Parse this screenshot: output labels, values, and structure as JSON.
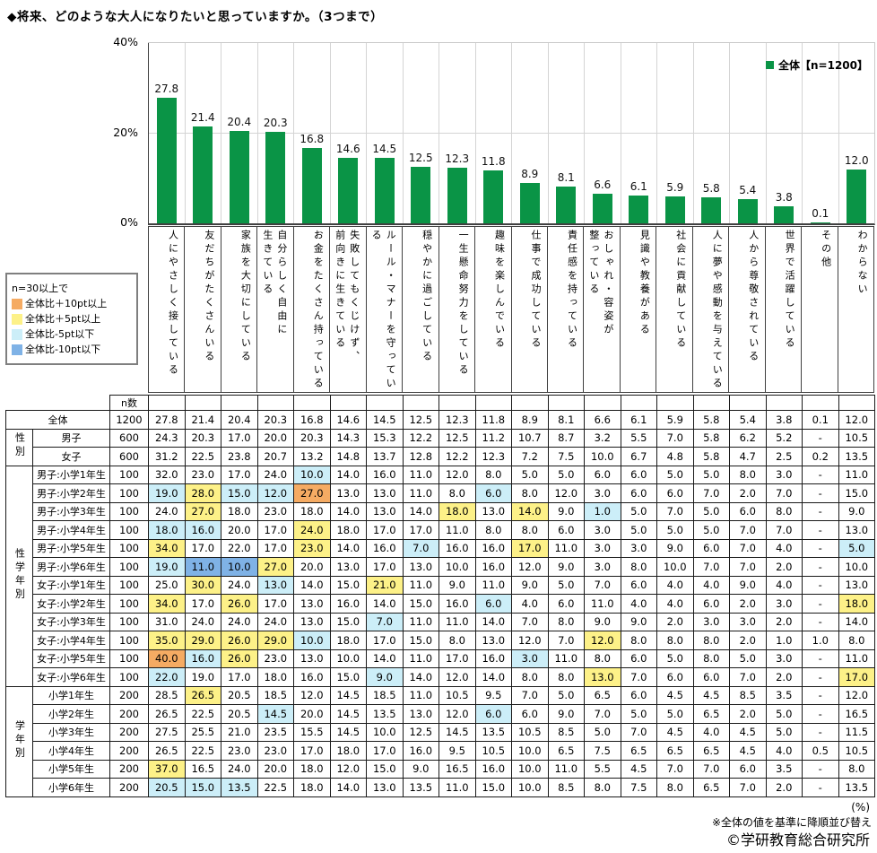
{
  "title": "◆将来、どのような大人になりたいと思っていますか。（3つまで）",
  "chart_data": {
    "type": "bar",
    "title": "将来、どのような大人になりたいと思っていますか。（3つまで）",
    "categories": [
      "人にやさしく接している",
      "友だちがたくさんいる",
      "家族を大切にしている",
      "自分らしく自由に\n生きている",
      "お金をたくさん持っている",
      "失敗してもくじけず、\n前向きに生きている",
      "ルール・マナーを守っている",
      "穏やかに過ごしている",
      "一生懸命努力をしている",
      "趣味を楽しんでいる",
      "仕事で成功している",
      "責任感を持っている",
      "おしゃれ・容姿が\n整っている",
      "見識や教養がある",
      "社会に貢献している",
      "人に夢や感動を与えている",
      "人から尊敬されている",
      "世界で活躍している",
      "その他",
      "わからない"
    ],
    "values": [
      27.8,
      21.4,
      20.4,
      20.3,
      16.8,
      14.6,
      14.5,
      12.5,
      12.3,
      11.8,
      8.9,
      8.1,
      6.6,
      6.1,
      5.9,
      5.8,
      5.4,
      3.8,
      0.1,
      12.0
    ],
    "xlabel": "",
    "ylabel": "",
    "ylim": [
      0,
      40
    ],
    "yticks": [
      "40%",
      "20%",
      "0%"
    ],
    "grid": true,
    "legend": "全体【n=1200】",
    "legend_position": "top-right",
    "bar_color": "#0a9446"
  },
  "threshold_legend": {
    "intro": "n=30以上で",
    "items": [
      {
        "key": "orange",
        "label": "全体比＋10pt以上",
        "color": "#f5ab63"
      },
      {
        "key": "yellow",
        "label": "全体比＋5pt以上",
        "color": "#fdf188"
      },
      {
        "key": "cyan",
        "label": "全体比-5pt以下",
        "color": "#cceef8"
      },
      {
        "key": "blue",
        "label": "全体比-10pt以下",
        "color": "#7fb2e6"
      }
    ]
  },
  "table": {
    "n_header": "n数",
    "overall_row": {
      "label": "全体",
      "n": "1200",
      "values": [
        "27.8",
        "21.4",
        "20.4",
        "20.3",
        "16.8",
        "14.6",
        "14.5",
        "12.5",
        "12.3",
        "11.8",
        "8.9",
        "8.1",
        "6.6",
        "6.1",
        "5.9",
        "5.8",
        "5.4",
        "3.8",
        "0.1",
        "12.0"
      ]
    },
    "groups": [
      {
        "name": "性別",
        "rows": [
          {
            "label": "男子",
            "n": "600",
            "values": [
              "24.3",
              "20.3",
              "17.0",
              "20.0",
              "20.3",
              "14.3",
              "15.3",
              "12.2",
              "12.5",
              "11.2",
              "10.7",
              "8.7",
              "3.2",
              "5.5",
              "7.0",
              "5.8",
              "6.2",
              "5.2",
              "-",
              "10.5"
            ]
          },
          {
            "label": "女子",
            "n": "600",
            "values": [
              "31.2",
              "22.5",
              "23.8",
              "20.7",
              "13.2",
              "14.8",
              "13.7",
              "12.8",
              "12.2",
              "12.3",
              "7.2",
              "7.5",
              "10.0",
              "6.7",
              "4.8",
              "5.8",
              "4.7",
              "2.5",
              "0.2",
              "13.5"
            ]
          }
        ]
      },
      {
        "name": "性学年別",
        "rows": [
          {
            "label": "男子:小学1年生",
            "n": "100",
            "values": [
              "32.0",
              "23.0",
              "17.0",
              "24.0",
              "10.0",
              "14.0",
              "16.0",
              "11.0",
              "12.0",
              "8.0",
              "5.0",
              "5.0",
              "6.0",
              "6.0",
              "5.0",
              "5.0",
              "8.0",
              "3.0",
              "-",
              "11.0"
            ]
          },
          {
            "label": "男子:小学2年生",
            "n": "100",
            "values": [
              "19.0",
              "28.0",
              "15.0",
              "12.0",
              "27.0",
              "13.0",
              "13.0",
              "11.0",
              "8.0",
              "6.0",
              "8.0",
              "12.0",
              "3.0",
              "6.0",
              "6.0",
              "7.0",
              "2.0",
              "7.0",
              "-",
              "15.0"
            ]
          },
          {
            "label": "男子:小学3年生",
            "n": "100",
            "values": [
              "24.0",
              "27.0",
              "18.0",
              "23.0",
              "18.0",
              "14.0",
              "13.0",
              "14.0",
              "18.0",
              "13.0",
              "14.0",
              "9.0",
              "1.0",
              "5.0",
              "7.0",
              "5.0",
              "6.0",
              "8.0",
              "-",
              "9.0"
            ]
          },
          {
            "label": "男子:小学4年生",
            "n": "100",
            "values": [
              "18.0",
              "16.0",
              "20.0",
              "17.0",
              "24.0",
              "18.0",
              "17.0",
              "17.0",
              "11.0",
              "8.0",
              "8.0",
              "6.0",
              "3.0",
              "5.0",
              "5.0",
              "5.0",
              "7.0",
              "7.0",
              "-",
              "13.0"
            ]
          },
          {
            "label": "男子:小学5年生",
            "n": "100",
            "values": [
              "34.0",
              "17.0",
              "22.0",
              "17.0",
              "23.0",
              "14.0",
              "16.0",
              "7.0",
              "16.0",
              "16.0",
              "17.0",
              "11.0",
              "3.0",
              "3.0",
              "9.0",
              "6.0",
              "7.0",
              "4.0",
              "-",
              "5.0"
            ]
          },
          {
            "label": "男子:小学6年生",
            "n": "100",
            "values": [
              "19.0",
              "11.0",
              "10.0",
              "27.0",
              "20.0",
              "13.0",
              "17.0",
              "13.0",
              "10.0",
              "16.0",
              "12.0",
              "9.0",
              "3.0",
              "8.0",
              "10.0",
              "7.0",
              "7.0",
              "2.0",
              "-",
              "10.0"
            ]
          },
          {
            "label": "女子:小学1年生",
            "n": "100",
            "values": [
              "25.0",
              "30.0",
              "24.0",
              "13.0",
              "14.0",
              "15.0",
              "21.0",
              "11.0",
              "9.0",
              "11.0",
              "9.0",
              "5.0",
              "7.0",
              "6.0",
              "4.0",
              "4.0",
              "9.0",
              "4.0",
              "-",
              "13.0"
            ]
          },
          {
            "label": "女子:小学2年生",
            "n": "100",
            "values": [
              "34.0",
              "17.0",
              "26.0",
              "17.0",
              "13.0",
              "16.0",
              "14.0",
              "15.0",
              "16.0",
              "6.0",
              "4.0",
              "6.0",
              "11.0",
              "4.0",
              "4.0",
              "6.0",
              "2.0",
              "3.0",
              "-",
              "18.0"
            ]
          },
          {
            "label": "女子:小学3年生",
            "n": "100",
            "values": [
              "31.0",
              "24.0",
              "24.0",
              "24.0",
              "13.0",
              "15.0",
              "7.0",
              "11.0",
              "11.0",
              "14.0",
              "7.0",
              "8.0",
              "9.0",
              "9.0",
              "2.0",
              "3.0",
              "3.0",
              "2.0",
              "-",
              "14.0"
            ]
          },
          {
            "label": "女子:小学4年生",
            "n": "100",
            "values": [
              "35.0",
              "29.0",
              "26.0",
              "29.0",
              "10.0",
              "18.0",
              "17.0",
              "15.0",
              "8.0",
              "13.0",
              "12.0",
              "7.0",
              "12.0",
              "8.0",
              "8.0",
              "8.0",
              "2.0",
              "1.0",
              "1.0",
              "8.0"
            ]
          },
          {
            "label": "女子:小学5年生",
            "n": "100",
            "values": [
              "40.0",
              "16.0",
              "26.0",
              "23.0",
              "13.0",
              "10.0",
              "14.0",
              "11.0",
              "17.0",
              "16.0",
              "3.0",
              "11.0",
              "8.0",
              "6.0",
              "5.0",
              "8.0",
              "5.0",
              "3.0",
              "-",
              "11.0"
            ]
          },
          {
            "label": "女子:小学6年生",
            "n": "100",
            "values": [
              "22.0",
              "19.0",
              "17.0",
              "18.0",
              "16.0",
              "15.0",
              "9.0",
              "14.0",
              "12.0",
              "14.0",
              "8.0",
              "8.0",
              "13.0",
              "7.0",
              "6.0",
              "6.0",
              "7.0",
              "2.0",
              "-",
              "17.0"
            ]
          }
        ]
      },
      {
        "name": "学年別",
        "rows": [
          {
            "label": "小学1年生",
            "n": "200",
            "values": [
              "28.5",
              "26.5",
              "20.5",
              "18.5",
              "12.0",
              "14.5",
              "18.5",
              "11.0",
              "10.5",
              "9.5",
              "7.0",
              "5.0",
              "6.5",
              "6.0",
              "4.5",
              "4.5",
              "8.5",
              "3.5",
              "-",
              "12.0"
            ]
          },
          {
            "label": "小学2年生",
            "n": "200",
            "values": [
              "26.5",
              "22.5",
              "20.5",
              "14.5",
              "20.0",
              "14.5",
              "13.5",
              "13.0",
              "12.0",
              "6.0",
              "6.0",
              "9.0",
              "7.0",
              "5.0",
              "5.0",
              "6.5",
              "2.0",
              "5.0",
              "-",
              "16.5"
            ]
          },
          {
            "label": "小学3年生",
            "n": "200",
            "values": [
              "27.5",
              "25.5",
              "21.0",
              "23.5",
              "15.5",
              "14.5",
              "10.0",
              "12.5",
              "14.5",
              "13.5",
              "10.5",
              "8.5",
              "5.0",
              "7.0",
              "4.5",
              "4.0",
              "4.5",
              "5.0",
              "-",
              "11.5"
            ]
          },
          {
            "label": "小学4年生",
            "n": "200",
            "values": [
              "26.5",
              "22.5",
              "23.0",
              "23.0",
              "17.0",
              "18.0",
              "17.0",
              "16.0",
              "9.5",
              "10.5",
              "10.0",
              "6.5",
              "7.5",
              "6.5",
              "6.5",
              "6.5",
              "4.5",
              "4.0",
              "0.5",
              "10.5"
            ]
          },
          {
            "label": "小学5年生",
            "n": "200",
            "values": [
              "37.0",
              "16.5",
              "24.0",
              "20.0",
              "18.0",
              "12.0",
              "15.0",
              "9.0",
              "16.5",
              "16.0",
              "10.0",
              "11.0",
              "5.5",
              "4.5",
              "7.0",
              "7.0",
              "6.0",
              "3.5",
              "-",
              "8.0"
            ]
          },
          {
            "label": "小学6年生",
            "n": "200",
            "values": [
              "20.5",
              "15.0",
              "13.5",
              "22.5",
              "18.0",
              "14.0",
              "13.0",
              "13.5",
              "11.0",
              "15.0",
              "10.0",
              "8.5",
              "8.0",
              "7.5",
              "8.0",
              "6.5",
              "7.0",
              "2.0",
              "-",
              "13.5"
            ]
          }
        ]
      }
    ]
  },
  "footer": {
    "percent": "(%)",
    "note": "※全体の値を基準に降順並び替え",
    "copyright": "©学研教育総合研究所"
  }
}
